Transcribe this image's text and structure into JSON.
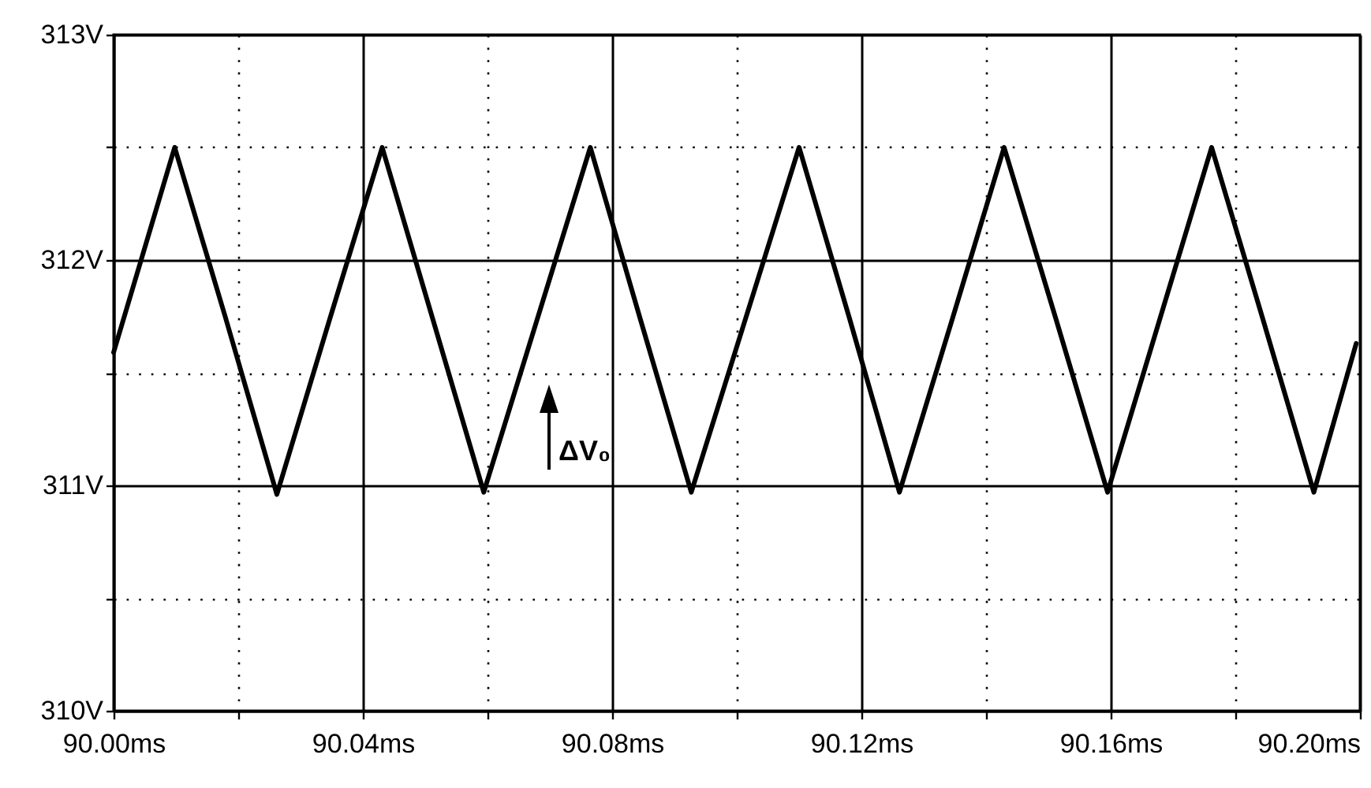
{
  "chart_data": {
    "type": "line",
    "x": [
      90.0,
      90.0098,
      90.0179,
      90.0262,
      90.0346,
      90.0431,
      90.0512,
      90.0594,
      90.0679,
      90.0765,
      90.0845,
      90.0927,
      90.1013,
      90.11,
      90.1181,
      90.1261,
      90.1345,
      90.1429,
      90.1512,
      90.1595,
      90.1678,
      90.1762,
      90.1844,
      90.1926,
      90.1994
    ],
    "series": [
      {
        "color": "#000000",
        "values": [
          311.59,
          312.5,
          311.75,
          310.96,
          311.73,
          312.5,
          311.74,
          310.97,
          311.73,
          312.5,
          311.74,
          310.97,
          311.73,
          312.5,
          311.74,
          310.97,
          311.73,
          312.5,
          311.74,
          310.97,
          311.73,
          312.5,
          311.74,
          310.97,
          311.63
        ]
      }
    ],
    "xlim": [
      90.0,
      90.2
    ],
    "xticks": [
      {
        "value": 90.0,
        "label": "90.00ms"
      },
      {
        "value": 90.02,
        "label": null
      },
      {
        "value": 90.04,
        "label": "90.04ms"
      },
      {
        "value": 90.06,
        "label": null
      },
      {
        "value": 90.08,
        "label": "90.08ms"
      },
      {
        "value": 90.1,
        "label": null
      },
      {
        "value": 90.12,
        "label": "90.12ms"
      },
      {
        "value": 90.14,
        "label": null
      },
      {
        "value": 90.16,
        "label": "90.16ms"
      },
      {
        "value": 90.18,
        "label": null
      },
      {
        "value": 90.2,
        "label": "90.20ms"
      }
    ],
    "ylim": [
      310,
      313
    ],
    "yticks": [
      {
        "value": 310,
        "label": "310V"
      },
      {
        "value": 310.5,
        "label": null
      },
      {
        "value": 311,
        "label": "311V"
      },
      {
        "value": 311.5,
        "label": null
      },
      {
        "value": 312,
        "label": "312V"
      },
      {
        "value": 312.5,
        "label": null
      },
      {
        "value": 313,
        "label": "313V"
      }
    ],
    "grid": true,
    "line_style": "solid",
    "annotations": [
      "ΔV₀"
    ]
  }
}
